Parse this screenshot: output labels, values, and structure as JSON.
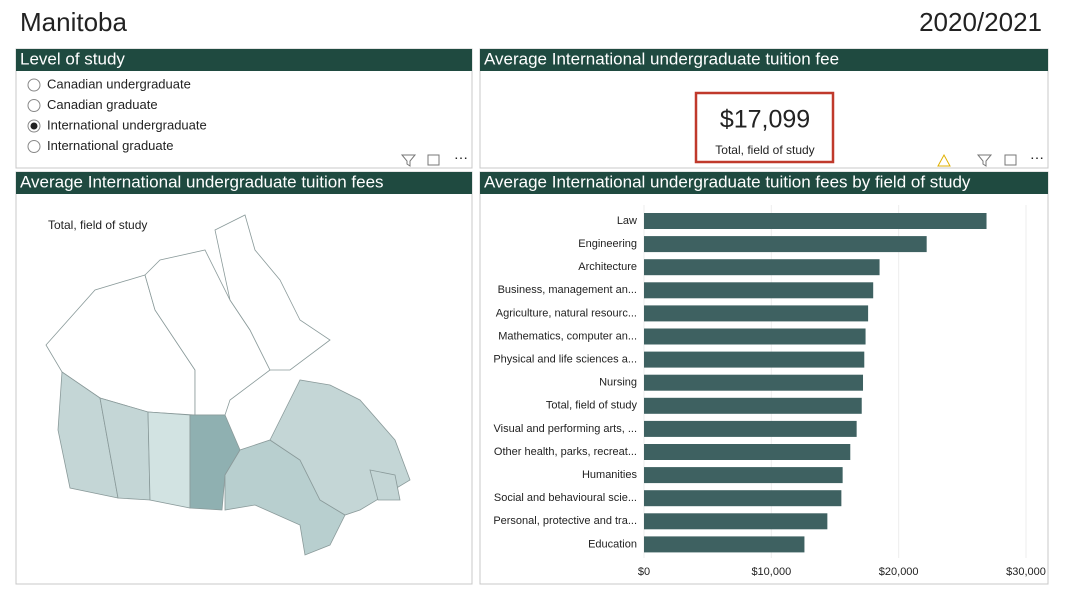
{
  "header": {
    "title": "Manitoba",
    "year": "2020/2021"
  },
  "level_of_study": {
    "title": "Level of study",
    "options": [
      "Canadian undergraduate",
      "Canadian graduate",
      "International undergraduate",
      "International graduate"
    ],
    "selected": 2
  },
  "kpi": {
    "title": "Average International undergraduate tuition fee",
    "value": "$17,099",
    "label": "Total, field of study"
  },
  "map_panel": {
    "title": "Average International undergraduate tuition fees",
    "label": "Total, field of study"
  },
  "chart_data": {
    "type": "hbar",
    "title": "Average International undergraduate tuition fees by field of study",
    "categories": [
      "Law",
      "Engineering",
      "Architecture",
      "Business, management an...",
      "Agriculture, natural resourc...",
      "Mathematics, computer an...",
      "Physical and life sciences a...",
      "Nursing",
      "Total, field of study",
      "Visual and performing arts, ...",
      "Other health, parks, recreat...",
      "Humanities",
      "Social and behavioural scie...",
      "Personal, protective and tra...",
      "Education"
    ],
    "values": [
      26900,
      22200,
      18500,
      18000,
      17600,
      17400,
      17300,
      17200,
      17099,
      16700,
      16200,
      15600,
      15500,
      14400,
      12600
    ],
    "color": "#3e6161",
    "xlim": [
      0,
      30000
    ],
    "xticks": [
      {
        "value": 0,
        "label": "$0"
      },
      {
        "value": 10000,
        "label": "$10,000"
      },
      {
        "value": 20000,
        "label": "$20,000"
      },
      {
        "value": 30000,
        "label": "$30,000"
      }
    ],
    "grid": true
  }
}
